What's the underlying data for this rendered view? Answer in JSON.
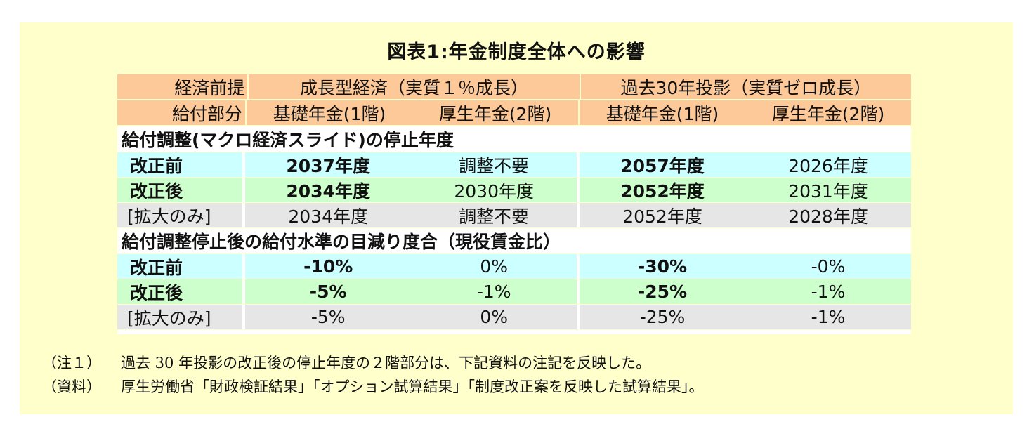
{
  "title": "図表1:年金制度全体への影響",
  "header": {
    "row1": {
      "label": "経済前提",
      "scenarios": [
        "成長型経済（実質１％成長）",
        "過去30年投影（実質ゼロ成長）"
      ]
    },
    "row2": {
      "label": "給付部分",
      "columns": [
        "基礎年金(1階)",
        "厚生年金(2階)",
        "基礎年金(1階)",
        "厚生年金(2階)"
      ]
    }
  },
  "sections": [
    {
      "title": "給付調整(マクロ経済スライド)の停止年度",
      "rows": [
        {
          "label": "改正前",
          "values": [
            "2037年度",
            "調整不要",
            "2057年度",
            "2026年度"
          ],
          "bold": [
            true,
            false,
            true,
            false
          ]
        },
        {
          "label": "改正後",
          "values": [
            "2034年度",
            "2030年度",
            "2052年度",
            "2031年度"
          ],
          "bold": [
            true,
            false,
            true,
            false
          ]
        },
        {
          "label": "[拡大のみ]",
          "values": [
            "2034年度",
            "調整不要",
            "2052年度",
            "2028年度"
          ],
          "bold": [
            false,
            false,
            false,
            false
          ]
        }
      ]
    },
    {
      "title": "給付調整停止後の給付水準の目減り度合（現役賃金比）",
      "rows": [
        {
          "label": "改正前",
          "values": [
            "-10%",
            "0%",
            "-30%",
            "-0%"
          ],
          "bold": [
            true,
            false,
            true,
            false
          ]
        },
        {
          "label": "改正後",
          "values": [
            "-5%",
            "-1%",
            "-25%",
            "-1%"
          ],
          "bold": [
            true,
            false,
            true,
            false
          ]
        },
        {
          "label": "[拡大のみ]",
          "values": [
            "-5%",
            "0%",
            "-25%",
            "-1%"
          ],
          "bold": [
            false,
            false,
            false,
            false
          ]
        }
      ]
    }
  ],
  "notes": [
    {
      "tag": "（注１）",
      "text": "過去 30 年投影の改正後の停止年度の２階部分は、下記資料の注記を反映した。"
    },
    {
      "tag": "（資料）",
      "text": "厚生労働省「財政検証結果」「オプション試算結果」「制度改正案を反映した試算結果」。"
    }
  ],
  "colors": {
    "panel": "#ffffcc",
    "header": "#fdc998",
    "row_before": "#ccffff",
    "row_after": "#ccffcc",
    "row_expand_only": "#e6e6e6"
  }
}
